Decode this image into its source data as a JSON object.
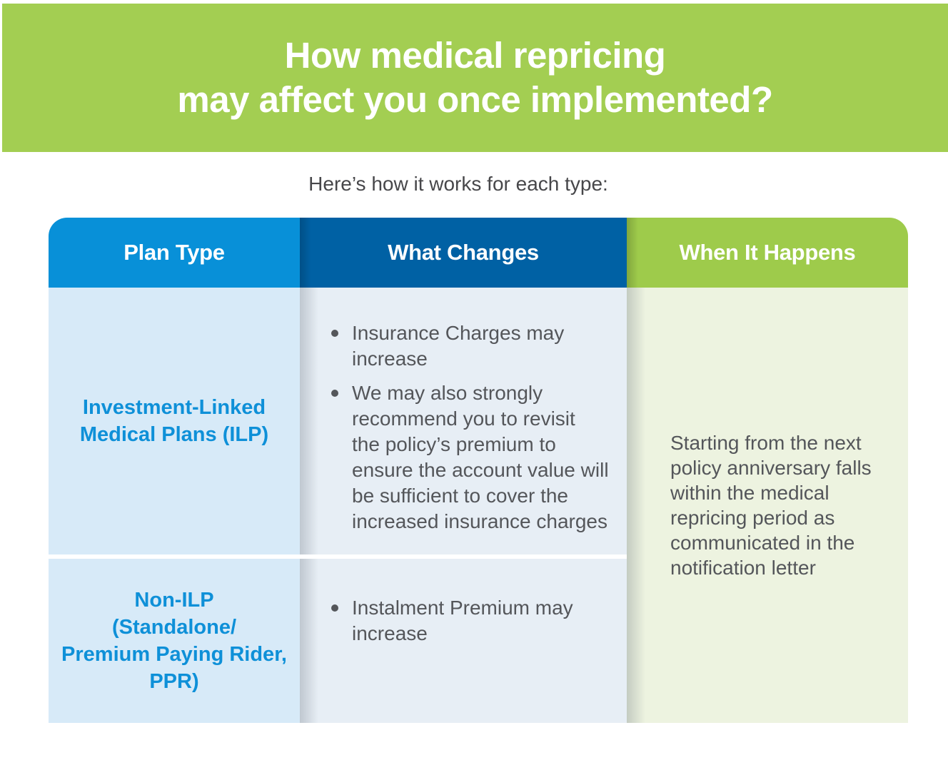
{
  "banner": {
    "title_line1": "How medical repricing",
    "title_line2": "may affect you once implemented?"
  },
  "intro": "Here’s how it works for each type:",
  "table": {
    "headers": [
      {
        "label": "Plan Type"
      },
      {
        "label": "What Changes"
      },
      {
        "label": "When It Happens"
      }
    ],
    "rows": [
      {
        "plan_type": "Investment-Linked Medical Plans (ILP)",
        "plan_type_lines": [
          "Investment-Linked",
          "Medical Plans (ILP)"
        ],
        "bullets": [
          {
            "text": "Insurance Charges may increase",
            "lines": [
              "Insurance Charges may",
              "increase"
            ]
          },
          {
            "text": "We may also strongly recommend you to revisit the policy’s premium to ensure the account value will be sufficient to cover the increased insurance charges",
            "lines": [
              "We may also strongly",
              "recommend you to revisit",
              "the policy’s premium to",
              "ensure the account value will",
              "be sufficient to cover the",
              "increased insurance charges"
            ]
          }
        ]
      },
      {
        "plan_type": "Non-ILP (Standalone/ Premium Paying Rider, PPR)",
        "plan_type_lines": [
          "Non-ILP",
          "(Standalone/",
          "Premium Paying Rider,",
          "PPR)"
        ],
        "bullets": [
          {
            "text": "Instalment Premium may increase",
            "lines": [
              "Instalment Premium may",
              "increase"
            ]
          }
        ]
      }
    ],
    "when_it_happens": {
      "text": "Starting from the next policy anniversary falls within the medical repricing period as communicated in the notification letter",
      "lines": [
        "Starting from the next",
        "policy anniversary falls",
        "within the medical",
        "repricing period as",
        "communicated in the",
        "notification letter"
      ]
    }
  },
  "colors": {
    "banner_green": "#A3CE52",
    "header_blue_light": "#0890D8",
    "header_blue_dark": "#0061A4",
    "header_green": "#9ECB4B",
    "cell_light_blue": "#D7EAF8",
    "cell_blue_gray": "#E7EEF5",
    "cell_light_green": "#EDF3E0",
    "plan_text_blue": "#0E90D8",
    "body_text_gray": "#54565A",
    "intro_text": "#47474A"
  }
}
